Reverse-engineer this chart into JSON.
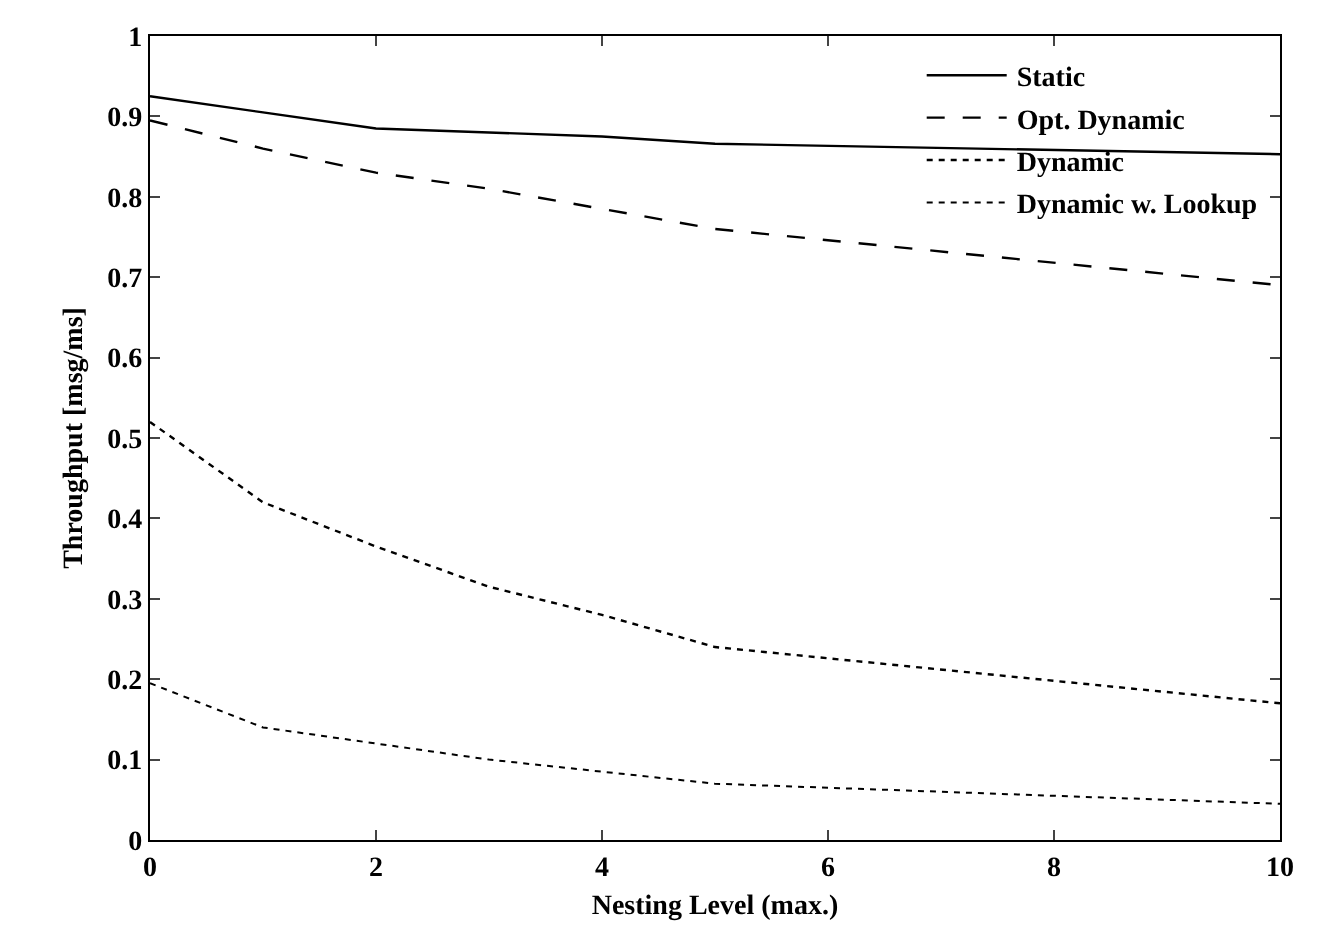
{
  "chart_data": {
    "type": "line",
    "xlabel": "Nesting Level (max.)",
    "ylabel": "Throughput [msg/ms]",
    "x": [
      0,
      1,
      2,
      3,
      4,
      5,
      10
    ],
    "xlim": [
      0,
      10
    ],
    "xticks": [
      0,
      2,
      4,
      6,
      8,
      10
    ],
    "ylim": [
      0,
      1
    ],
    "yticks": [
      0,
      0.1,
      0.2,
      0.3,
      0.4,
      0.5,
      0.6,
      0.7,
      0.8,
      0.9,
      1
    ],
    "legend": "top right",
    "marker": "none",
    "series": [
      {
        "name": "Static",
        "color": "#000000",
        "line_style": "solid",
        "values": [
          0.925,
          0.905,
          0.885,
          0.88,
          0.875,
          0.866,
          0.853
        ]
      },
      {
        "name": "Opt. Dynamic",
        "color": "#000000",
        "line_style": "dashed",
        "values": [
          0.895,
          0.86,
          0.83,
          0.81,
          0.785,
          0.76,
          0.69
        ]
      },
      {
        "name": "Dynamic",
        "color": "#000000",
        "line_style": "dotted",
        "values": [
          0.52,
          0.42,
          0.365,
          0.315,
          0.28,
          0.24,
          0.17
        ]
      },
      {
        "name": "Dynamic w. Lookup",
        "color": "#000000",
        "line_style": "dotted",
        "values": [
          0.195,
          0.14,
          0.12,
          0.1,
          0.085,
          0.07,
          0.045
        ]
      }
    ]
  }
}
